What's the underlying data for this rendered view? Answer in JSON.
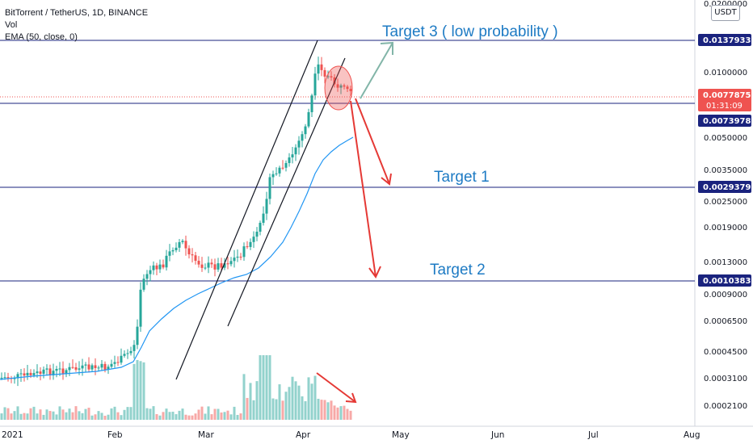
{
  "header": {
    "symbol_line": "BitTorrent / TetherUS, 1D, BINANCE",
    "vol_label": "Vol",
    "ema_label": "EMA (50, close, 0)"
  },
  "currency_button": "USDT",
  "chart_data": {
    "type": "candlestick",
    "y_scale": "log",
    "y_top_partial_label": "0.0200000",
    "y_ticks": [
      "0.0100000",
      "0.0050000",
      "0.0035000",
      "0.0025000",
      "0.0019000",
      "0.0013000",
      "0.0009000",
      "0.0006500",
      "0.0004500",
      "0.0003100",
      "0.0002100"
    ],
    "x_ticks": [
      "2021",
      "Feb",
      "Mar",
      "Apr",
      "May",
      "Jun",
      "Jul",
      "Aug"
    ],
    "level_lines": [
      {
        "value": "0.0137933"
      },
      {
        "value": "0.0073978"
      },
      {
        "value": "0.0029379"
      },
      {
        "value": "0.0010383"
      }
    ],
    "last_price": {
      "value": "0.0077875",
      "countdown": "01:31:09"
    },
    "annotations": [
      {
        "text": "Target 3 ( low probability )"
      },
      {
        "text": "Target 1"
      },
      {
        "text": "Target 2"
      }
    ],
    "colors": {
      "up": "#26a69a",
      "down": "#ef5350",
      "ema": "#2196f3",
      "level": "#1a237e",
      "annotation": "#1e7bc4"
    }
  }
}
